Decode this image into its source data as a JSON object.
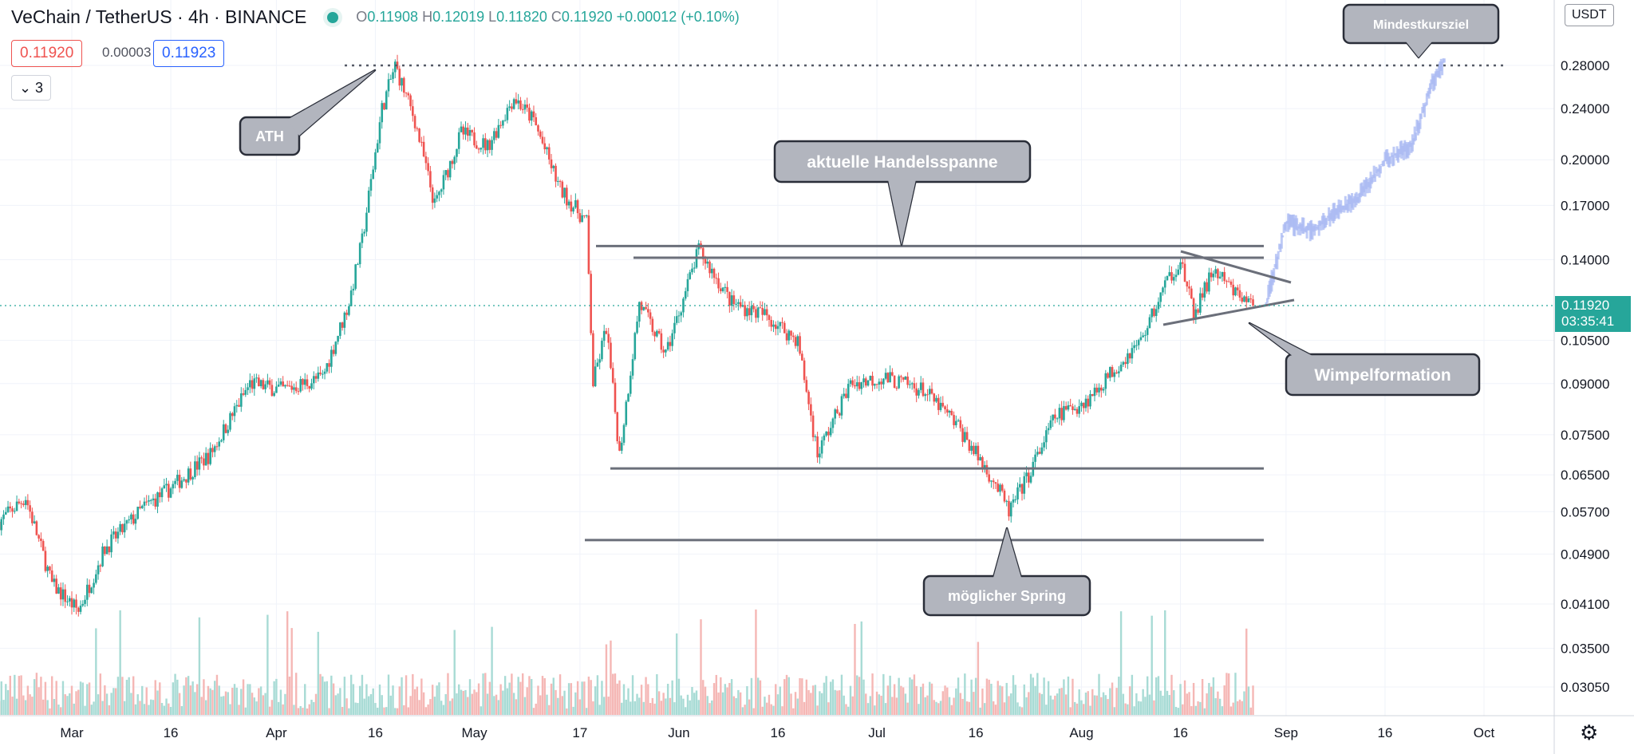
{
  "header": {
    "symbol": "VeChain / TetherUS · 4h · BINANCE",
    "open_label": "O",
    "open": "0.11908",
    "high_label": "H",
    "high": "0.12019",
    "low_label": "L",
    "low": "0.11820",
    "close_label": "C",
    "close": "0.11920",
    "change": "+0.00012 (+0.10%)"
  },
  "trade": {
    "sell": "0.11920",
    "spread": "0.00003",
    "buy": "0.11923"
  },
  "indicators_toggle": "3",
  "currency_button": "USDT",
  "last_price": {
    "price": "0.11920",
    "countdown": "03:35:41"
  },
  "colors": {
    "up": "#26a69a",
    "down": "#ef5350",
    "annotation_fill": "#b2b5be",
    "annotation_stroke": "#2a2e39",
    "line": "#6b6f7a",
    "projection": "#a9b9f3"
  },
  "icons": {
    "settings": "gear-icon",
    "collapse": "chevron-down-icon",
    "live": "live-dot-icon"
  },
  "chart_data": {
    "type": "candlestick",
    "price_scale": "log",
    "ylim": [
      0.028,
      0.33
    ],
    "y_ticks": [
      "0.28000",
      "0.24000",
      "0.20000",
      "0.17000",
      "0.14000",
      "0.10500",
      "0.09000",
      "0.07500",
      "0.06500",
      "0.05700",
      "0.04900",
      "0.04100",
      "0.03500",
      "0.03050"
    ],
    "x_ticks": [
      "Mar",
      "16",
      "Apr",
      "16",
      "May",
      "17",
      "Jun",
      "16",
      "Jul",
      "16",
      "Aug",
      "16",
      "Sep",
      "16",
      "Oct"
    ],
    "x_tick_dates": [
      "2021-03-01",
      "2021-03-16",
      "2021-04-01",
      "2021-04-16",
      "2021-05-01",
      "2021-05-17",
      "2021-06-01",
      "2021-06-16",
      "2021-07-01",
      "2021-07-16",
      "2021-08-01",
      "2021-08-16",
      "2021-09-01",
      "2021-09-16",
      "2021-10-01"
    ],
    "price_path": [
      [
        "2021-02-18",
        0.055
      ],
      [
        "2021-02-22",
        0.06
      ],
      [
        "2021-02-26",
        0.044
      ],
      [
        "2021-03-02",
        0.04
      ],
      [
        "2021-03-06",
        0.05
      ],
      [
        "2021-03-12",
        0.058
      ],
      [
        "2021-03-16",
        0.062
      ],
      [
        "2021-03-22",
        0.07
      ],
      [
        "2021-03-28",
        0.09
      ],
      [
        "2021-04-02",
        0.088
      ],
      [
        "2021-04-08",
        0.092
      ],
      [
        "2021-04-12",
        0.12
      ],
      [
        "2021-04-14",
        0.15
      ],
      [
        "2021-04-17",
        0.24
      ],
      [
        "2021-04-19",
        0.28
      ],
      [
        "2021-04-22",
        0.23
      ],
      [
        "2021-04-25",
        0.17
      ],
      [
        "2021-04-29",
        0.22
      ],
      [
        "2021-05-03",
        0.21
      ],
      [
        "2021-05-07",
        0.25
      ],
      [
        "2021-05-10",
        0.23
      ],
      [
        "2021-05-14",
        0.18
      ],
      [
        "2021-05-18",
        0.16
      ],
      [
        "2021-05-19",
        0.09
      ],
      [
        "2021-05-21",
        0.11
      ],
      [
        "2021-05-23",
        0.07
      ],
      [
        "2021-05-26",
        0.12
      ],
      [
        "2021-05-30",
        0.1
      ],
      [
        "2021-06-04",
        0.145
      ],
      [
        "2021-06-09",
        0.12
      ],
      [
        "2021-06-14",
        0.115
      ],
      [
        "2021-06-19",
        0.105
      ],
      [
        "2021-06-22",
        0.07
      ],
      [
        "2021-06-27",
        0.09
      ],
      [
        "2021-07-02",
        0.092
      ],
      [
        "2021-07-08",
        0.088
      ],
      [
        "2021-07-13",
        0.078
      ],
      [
        "2021-07-19",
        0.063
      ],
      [
        "2021-07-21",
        0.057
      ],
      [
        "2021-07-24",
        0.065
      ],
      [
        "2021-07-28",
        0.08
      ],
      [
        "2021-08-02",
        0.085
      ],
      [
        "2021-08-06",
        0.095
      ],
      [
        "2021-08-10",
        0.105
      ],
      [
        "2021-08-14",
        0.13
      ],
      [
        "2021-08-16",
        0.14
      ],
      [
        "2021-08-18",
        0.115
      ],
      [
        "2021-08-21",
        0.135
      ],
      [
        "2021-08-24",
        0.125
      ],
      [
        "2021-08-27",
        0.1192
      ]
    ],
    "projection_path": [
      [
        "2021-08-29",
        0.12
      ],
      [
        "2021-09-01",
        0.16
      ],
      [
        "2021-09-05",
        0.155
      ],
      [
        "2021-09-08",
        0.165
      ],
      [
        "2021-09-12",
        0.175
      ],
      [
        "2021-09-16",
        0.2
      ],
      [
        "2021-09-20",
        0.21
      ],
      [
        "2021-09-23",
        0.26
      ],
      [
        "2021-09-25",
        0.285
      ]
    ],
    "annotations": [
      {
        "label": "ATH"
      },
      {
        "label": "aktuelle Handelsspanne"
      },
      {
        "label": "Wimpelformation"
      },
      {
        "label": "möglicher Spring"
      },
      {
        "label": "Mindestkursziel"
      }
    ],
    "levels": [
      {
        "name": "ath-line",
        "price": 0.28
      },
      {
        "name": "range-top-1",
        "price": 0.147
      },
      {
        "name": "range-top-2",
        "price": 0.141
      },
      {
        "name": "support-1",
        "price": 0.0665
      },
      {
        "name": "support-2",
        "price": 0.0515
      }
    ]
  }
}
